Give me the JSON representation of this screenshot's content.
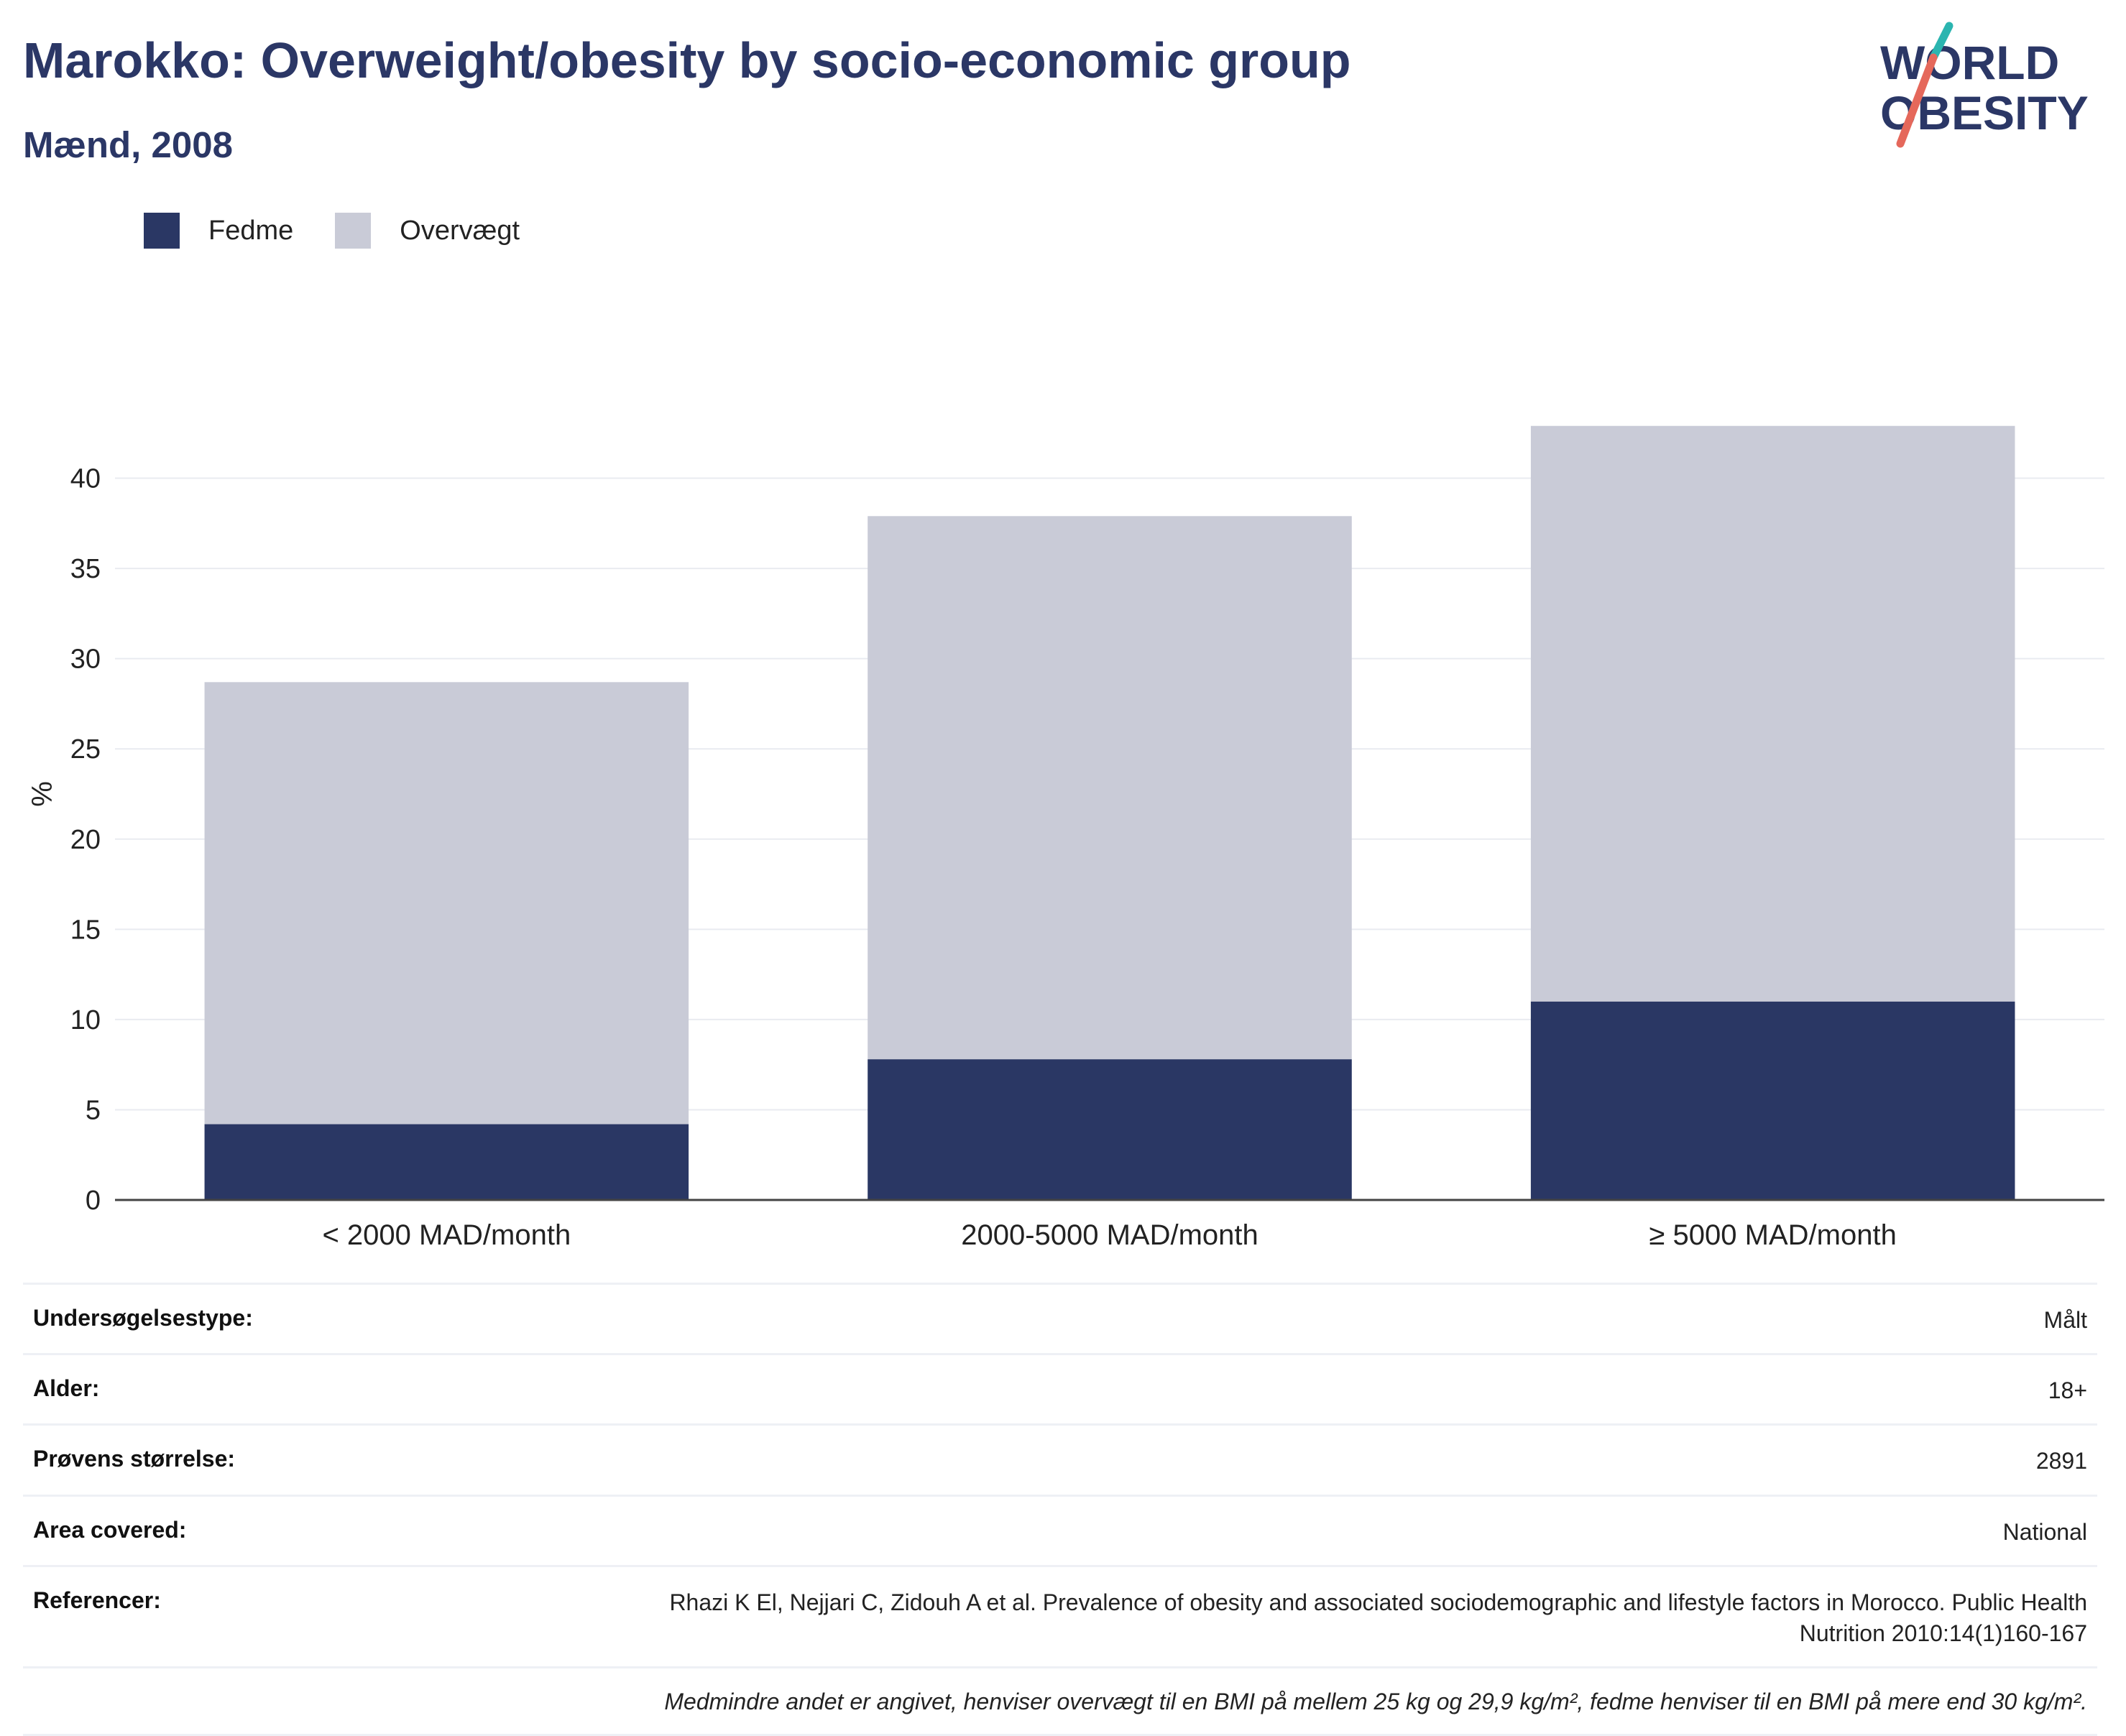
{
  "header": {
    "title": "Marokko: Overweight/obesity by socio-economic group",
    "subtitle": "Mænd, 2008"
  },
  "logo": {
    "line1": "WORLD",
    "line2": "OBESITY"
  },
  "colors": {
    "fedme": "#2a3764",
    "overvaegt": "#c9cbd7",
    "title": "#2b3766",
    "logo_teal": "#2bb5b0",
    "logo_coral": "#e5685b"
  },
  "legend": [
    {
      "label": "Fedme",
      "color": "#2a3764"
    },
    {
      "label": "Overvægt",
      "color": "#c9cbd7"
    }
  ],
  "chart_data": {
    "type": "bar",
    "stacked": true,
    "categories": [
      "< 2000 MAD/month",
      "2000-5000 MAD/month",
      "≥ 5000 MAD/month"
    ],
    "series": [
      {
        "name": "Fedme",
        "values": [
          4.2,
          7.8,
          11.0
        ],
        "color": "#2a3764"
      },
      {
        "name": "Overvægt",
        "values": [
          24.5,
          30.1,
          31.9
        ],
        "color": "#c9cbd7"
      }
    ],
    "ylabel": "%",
    "xlabel": "",
    "ylim": [
      0,
      45
    ],
    "yticks": [
      0,
      5,
      10,
      15,
      20,
      25,
      30,
      35,
      40
    ],
    "grid": true,
    "legend_position": "top-left"
  },
  "info": {
    "rows": [
      {
        "label": "Undersøgelsestype:",
        "value": "Målt"
      },
      {
        "label": "Alder:",
        "value": "18+"
      },
      {
        "label": "Prøvens størrelse:",
        "value": "2891"
      },
      {
        "label": "Area covered:",
        "value": "National"
      },
      {
        "label": "Referencer:",
        "value": "Rhazi K El, Nejjari C, Zidouh A et al. Prevalence of obesity and associated sociodemographic and lifestyle factors in Morocco. Public Health Nutrition 2010:14(1)160-167"
      }
    ],
    "note": "Medmindre andet er angivet, henviser overvægt til en BMI på mellem 25 kg og 29,9 kg/m², fedme henviser til en BMI på mere end 30 kg/m²."
  }
}
